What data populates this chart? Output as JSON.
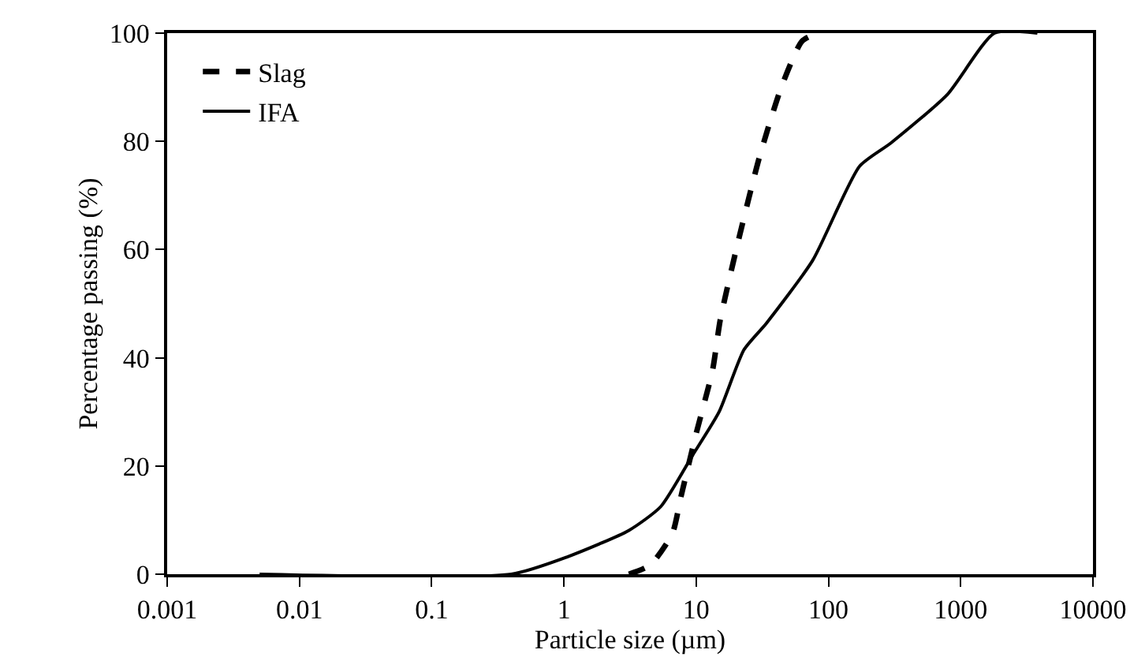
{
  "chart_data": {
    "type": "line",
    "xlabel": "Particle size (µm)",
    "ylabel": "Percentage passing (%)",
    "log": "x",
    "xlim": [
      0.001,
      10000
    ],
    "xticks": [
      0.001,
      0.01,
      0.1,
      1,
      10,
      100,
      1000,
      10000
    ],
    "ylim": [
      0,
      100
    ],
    "yticks": [
      0,
      20,
      40,
      60,
      80,
      100
    ],
    "grid": false,
    "legend": "top left",
    "marker": "none",
    "series": [
      {
        "name": "Slag",
        "color": "#000000",
        "line_style": "dashed",
        "x": [
          3.1,
          4.5,
          6.6,
          7.7,
          10,
          13.3,
          15.2,
          21,
          30,
          44,
          63,
          82
        ],
        "values": [
          0,
          1.7,
          7.5,
          14.5,
          26,
          37.7,
          47,
          62,
          77,
          90,
          98.5,
          100
        ]
      },
      {
        "name": "IFA",
        "color": "#000000",
        "line_style": "solid",
        "x": [
          0.005,
          0.4,
          1.06,
          3.1,
          5.4,
          9.4,
          14.9,
          23,
          34,
          76,
          172,
          297,
          795,
          1800,
          3800
        ],
        "values": [
          0,
          0,
          3.2,
          8.1,
          12.5,
          22,
          30,
          41.5,
          46.4,
          58,
          75.4,
          79.7,
          88.7,
          100,
          100
        ]
      }
    ]
  }
}
